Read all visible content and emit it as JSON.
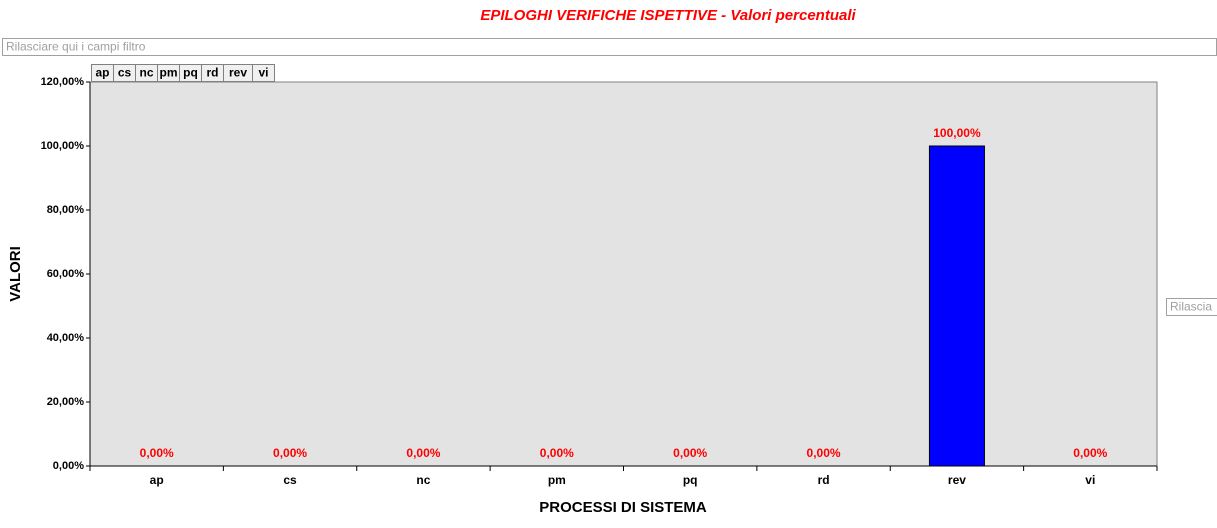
{
  "chart_data": {
    "type": "bar",
    "title": "EPILOGHI VERIFICHE ISPETTIVE - Valori percentuali",
    "filter_drop_zone": "Rilasciare qui i campi filtro",
    "series_drop_zone": "Rilascia",
    "field_buttons": [
      "ap",
      "cs",
      "nc",
      "pm",
      "pq",
      "rd",
      "rev",
      "vi"
    ],
    "x_label": "PROCESSI DI SISTEMA",
    "y_label": "VALORI",
    "categories": [
      "ap",
      "cs",
      "nc",
      "pm",
      "pq",
      "rd",
      "rev",
      "vi"
    ],
    "values": [
      0,
      0,
      0,
      0,
      0,
      0,
      100,
      0
    ],
    "value_labels": [
      "0,00%",
      "0,00%",
      "0,00%",
      "0,00%",
      "0,00%",
      "0,00%",
      "100,00%",
      "0,00%"
    ],
    "color": "#0000ff",
    "ylim": [
      0,
      120
    ],
    "yticks": [
      {
        "value": 0,
        "label": "0,00%"
      },
      {
        "value": 20,
        "label": "20,00%"
      },
      {
        "value": 40,
        "label": "40,00%"
      },
      {
        "value": 60,
        "label": "60,00%"
      },
      {
        "value": 80,
        "label": "80,00%"
      },
      {
        "value": 100,
        "label": "100,00%"
      },
      {
        "value": 120,
        "label": "120,00%"
      }
    ]
  }
}
